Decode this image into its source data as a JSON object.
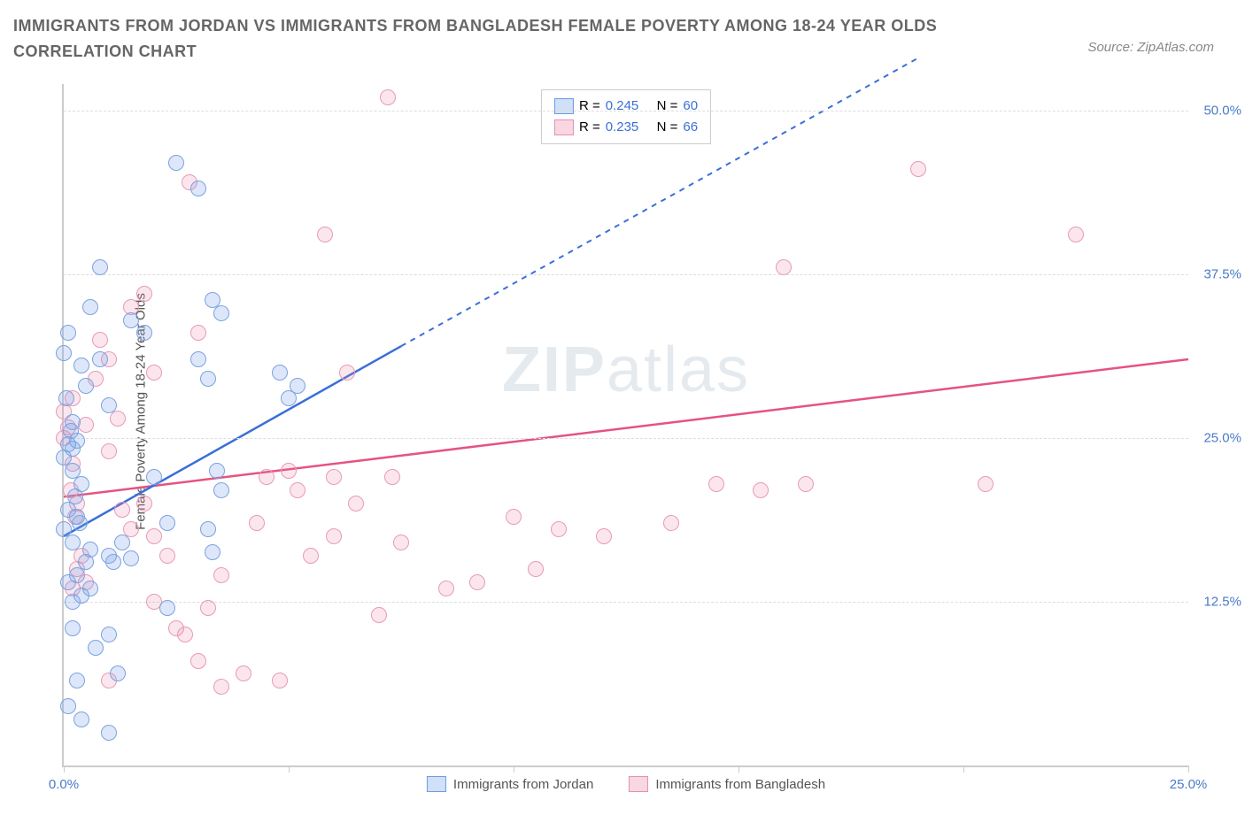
{
  "title": "IMMIGRANTS FROM JORDAN VS IMMIGRANTS FROM BANGLADESH FEMALE POVERTY AMONG 18-24 YEAR OLDS CORRELATION CHART",
  "source": "Source: ZipAtlas.com",
  "watermark_bold": "ZIP",
  "watermark_thin": "atlas",
  "yaxis_label": "Female Poverty Among 18-24 Year Olds",
  "chart": {
    "type": "scatter",
    "xlim": [
      0,
      25
    ],
    "ylim": [
      0,
      52
    ],
    "x_ticks": [
      0,
      5,
      10,
      15,
      20,
      25
    ],
    "x_tick_labels": [
      "0.0%",
      "",
      "",
      "",
      "",
      "25.0%"
    ],
    "y_ticks": [
      12.5,
      25.0,
      37.5,
      50.0
    ],
    "y_tick_labels": [
      "12.5%",
      "25.0%",
      "37.5%",
      "50.0%"
    ],
    "grid_color": "#dddddd",
    "axis_color": "#cccccc",
    "background_color": "#ffffff",
    "marker_radius": 8,
    "marker_stroke_width": 1.5,
    "series": {
      "jordan": {
        "label": "Immigrants from Jordan",
        "fill": "rgba(120,160,230,0.25)",
        "stroke": "#7aa3e0",
        "swatch_fill": "#cfe0f7",
        "swatch_stroke": "#6f9be0",
        "R": "0.245",
        "N": "60",
        "trend": {
          "x1": 0,
          "y1": 17.5,
          "x2": 7.5,
          "y2": 32,
          "x2_dash": 19,
          "y2_dash": 54,
          "color": "#3a6fd8",
          "width": 2.5
        },
        "points": [
          [
            0.0,
            23.5
          ],
          [
            0.1,
            24.5
          ],
          [
            0.2,
            24.2
          ],
          [
            0.2,
            22.5
          ],
          [
            0.15,
            25.5
          ],
          [
            0.3,
            24.8
          ],
          [
            0.2,
            26.2
          ],
          [
            0.3,
            19.0
          ],
          [
            0.25,
            20.5
          ],
          [
            0.4,
            21.5
          ],
          [
            0.1,
            19.5
          ],
          [
            0.0,
            18.0
          ],
          [
            0.2,
            17.0
          ],
          [
            0.35,
            18.5
          ],
          [
            0.5,
            15.5
          ],
          [
            0.3,
            14.5
          ],
          [
            0.1,
            14.0
          ],
          [
            0.4,
            13.0
          ],
          [
            0.2,
            12.5
          ],
          [
            0.6,
            13.5
          ],
          [
            0.6,
            16.5
          ],
          [
            1.0,
            16.0
          ],
          [
            1.1,
            15.5
          ],
          [
            1.3,
            17.0
          ],
          [
            1.5,
            15.8
          ],
          [
            0.1,
            4.5
          ],
          [
            0.4,
            3.5
          ],
          [
            1.0,
            2.5
          ],
          [
            0.3,
            6.5
          ],
          [
            1.2,
            7.0
          ],
          [
            0.7,
            9.0
          ],
          [
            0.2,
            10.5
          ],
          [
            0.05,
            28.0
          ],
          [
            0.5,
            29.0
          ],
          [
            1.0,
            27.5
          ],
          [
            0.8,
            31.0
          ],
          [
            0.4,
            30.5
          ],
          [
            0.0,
            31.5
          ],
          [
            0.1,
            33.0
          ],
          [
            0.6,
            35.0
          ],
          [
            1.5,
            34.0
          ],
          [
            1.8,
            33.0
          ],
          [
            3.3,
            35.5
          ],
          [
            3.5,
            34.5
          ],
          [
            2.5,
            46.0
          ],
          [
            0.8,
            38.0
          ],
          [
            3.0,
            44.0
          ],
          [
            2.0,
            22.0
          ],
          [
            2.3,
            18.5
          ],
          [
            3.2,
            18.0
          ],
          [
            3.3,
            16.3
          ],
          [
            3.4,
            22.5
          ],
          [
            3.5,
            21.0
          ],
          [
            3.2,
            29.5
          ],
          [
            3.0,
            31.0
          ],
          [
            4.8,
            30.0
          ],
          [
            5.0,
            28.0
          ],
          [
            5.2,
            29.0
          ],
          [
            1.0,
            10.0
          ],
          [
            2.3,
            12.0
          ]
        ]
      },
      "bangladesh": {
        "label": "Immigrants from Bangladesh",
        "fill": "rgba(235,130,170,0.2)",
        "stroke": "#e89ab5",
        "swatch_fill": "#f8d7e2",
        "swatch_stroke": "#e88fb0",
        "R": "0.235",
        "N": "66",
        "trend": {
          "x1": 0,
          "y1": 20.5,
          "x2": 25,
          "y2": 31,
          "color": "#e5537f",
          "width": 2.5
        },
        "points": [
          [
            0.0,
            25.0
          ],
          [
            0.1,
            25.8
          ],
          [
            0.2,
            23.0
          ],
          [
            0.15,
            21.0
          ],
          [
            0.3,
            20.0
          ],
          [
            0.25,
            19.0
          ],
          [
            0.0,
            27.0
          ],
          [
            0.2,
            28.0
          ],
          [
            0.5,
            26.0
          ],
          [
            0.4,
            16.0
          ],
          [
            0.3,
            15.0
          ],
          [
            0.5,
            14.0
          ],
          [
            0.2,
            13.5
          ],
          [
            1.2,
            26.5
          ],
          [
            1.0,
            24.0
          ],
          [
            1.3,
            19.5
          ],
          [
            1.5,
            18.0
          ],
          [
            1.8,
            20.0
          ],
          [
            2.0,
            12.5
          ],
          [
            1.0,
            31.0
          ],
          [
            0.7,
            29.5
          ],
          [
            1.5,
            35.0
          ],
          [
            3.0,
            33.0
          ],
          [
            2.8,
            44.5
          ],
          [
            2.0,
            30.0
          ],
          [
            7.2,
            51.0
          ],
          [
            5.8,
            40.5
          ],
          [
            2.5,
            10.5
          ],
          [
            2.7,
            10.0
          ],
          [
            3.0,
            8.0
          ],
          [
            3.2,
            12.0
          ],
          [
            3.5,
            14.5
          ],
          [
            4.0,
            7.0
          ],
          [
            4.3,
            18.5
          ],
          [
            4.5,
            22.0
          ],
          [
            5.0,
            22.5
          ],
          [
            5.2,
            21.0
          ],
          [
            6.0,
            22.0
          ],
          [
            6.3,
            30.0
          ],
          [
            5.5,
            16.0
          ],
          [
            6.0,
            17.5
          ],
          [
            6.5,
            20.0
          ],
          [
            7.0,
            11.5
          ],
          [
            7.3,
            22.0
          ],
          [
            7.5,
            17.0
          ],
          [
            8.5,
            13.5
          ],
          [
            9.2,
            14.0
          ],
          [
            10.0,
            19.0
          ],
          [
            10.5,
            15.0
          ],
          [
            11.0,
            18.0
          ],
          [
            12.0,
            17.5
          ],
          [
            13.5,
            18.5
          ],
          [
            14.5,
            21.5
          ],
          [
            16.0,
            38.0
          ],
          [
            16.5,
            21.5
          ],
          [
            15.5,
            21.0
          ],
          [
            19.0,
            45.5
          ],
          [
            20.5,
            21.5
          ],
          [
            22.5,
            40.5
          ],
          [
            0.8,
            32.5
          ],
          [
            1.8,
            36.0
          ],
          [
            3.5,
            6.0
          ],
          [
            1.0,
            6.5
          ],
          [
            4.8,
            6.5
          ],
          [
            2.0,
            17.5
          ],
          [
            2.3,
            16.0
          ]
        ]
      }
    },
    "legend_text": {
      "R_prefix": "R = ",
      "N_prefix": "N = "
    },
    "value_color": "#3a6fd8",
    "label_color": "#555555",
    "tick_label_color": "#4a7ac7",
    "tick_label_fontsize": 15
  }
}
